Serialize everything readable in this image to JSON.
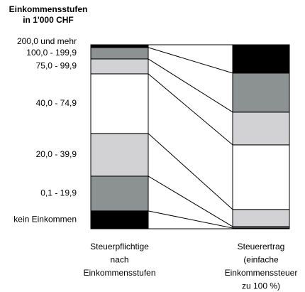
{
  "chart_data": {
    "type": "bar",
    "stacked": true,
    "title": [
      "Einkommensstufen",
      "in 1'000 CHF"
    ],
    "categories": [
      [
        "Steuerpflichtige",
        "nach",
        "Einkommensstufen"
      ],
      [
        "Steuerertrag",
        "(einfache",
        "Einkommenssteuer",
        "zu 100 %)"
      ]
    ],
    "ylim": [
      0,
      100
    ],
    "series": [
      {
        "name": "200,0 und mehr",
        "color": "#000000",
        "values": [
          1.5,
          15.4
        ]
      },
      {
        "name": "100,0 - 199,9",
        "color": "#8c9191",
        "values": [
          6.2,
          21.2
        ]
      },
      {
        "name": "75,0 - 99,9",
        "color": "#d2d2d4",
        "values": [
          8.1,
          17.8
        ]
      },
      {
        "name": "40,0 - 74,9",
        "color": "#ffffff",
        "values": [
          32.4,
          35.1
        ]
      },
      {
        "name": "20,0 - 39,9",
        "color": "#d2d2d4",
        "values": [
          23.2,
          9.3
        ]
      },
      {
        "name": "0,1 - 19,9",
        "color": "#8c9191",
        "values": [
          18.9,
          0.8
        ]
      },
      {
        "name": "kein Einkommen",
        "color": "#000000",
        "values": [
          9.7,
          0.4
        ]
      }
    ]
  }
}
